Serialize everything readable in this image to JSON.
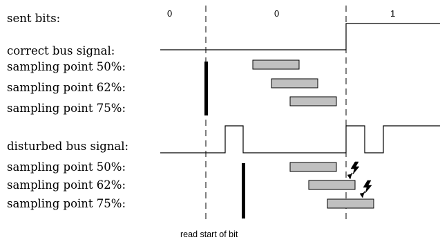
{
  "labels": {
    "sent_bits": "sent bits:",
    "correct_signal": "correct bus signal:",
    "disturbed_signal": "disturbed bus signal:",
    "caption": "read start of bit"
  },
  "sent_bits": [
    "0",
    "0",
    "1"
  ],
  "correct_rows": [
    {
      "label": "sampling point 50%:",
      "percent": 50
    },
    {
      "label": "sampling point 62%:",
      "percent": 62
    },
    {
      "label": "sampling point 75%:",
      "percent": 75
    }
  ],
  "disturbed_rows": [
    {
      "label": "sampling point 50%:",
      "percent": 50
    },
    {
      "label": "sampling point 62%:",
      "percent": 62
    },
    {
      "label": "sampling point 75%:",
      "percent": 75
    }
  ],
  "icons": {
    "disturbance": "lightning-icon",
    "resync": "sync-bar-icon"
  }
}
